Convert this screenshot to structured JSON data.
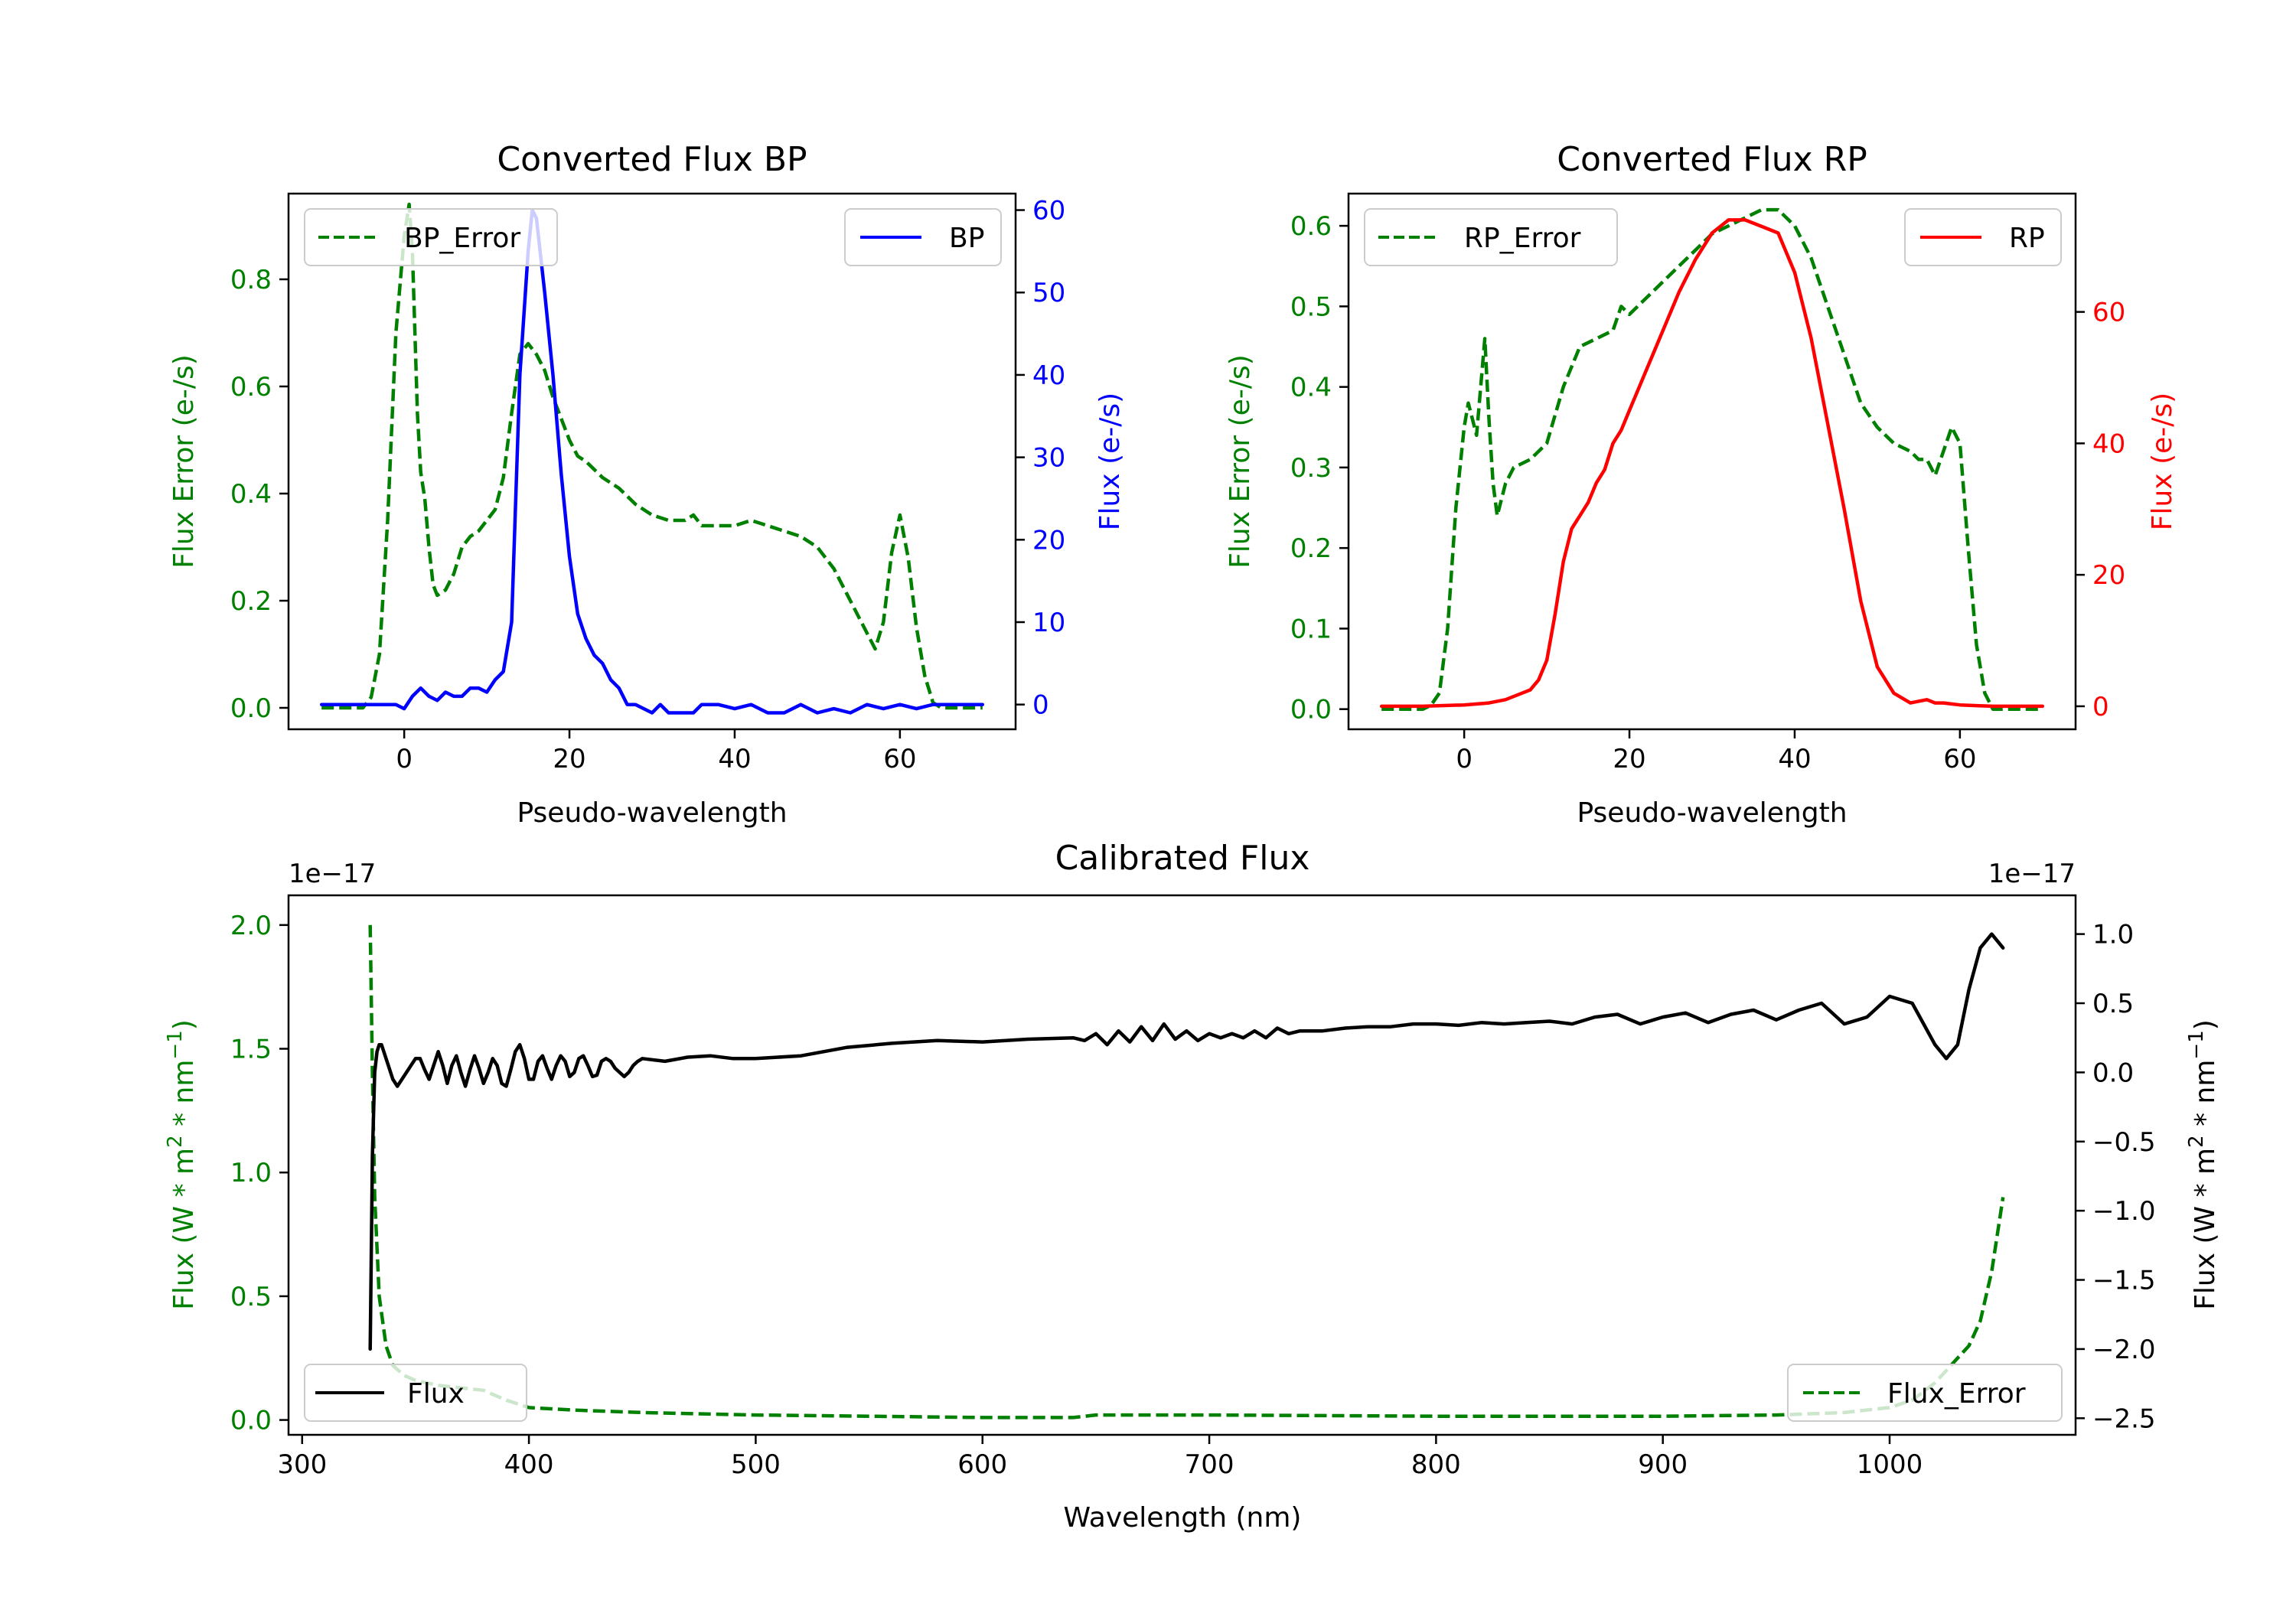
{
  "colors": {
    "green": "#008000",
    "blue": "#0000ff",
    "red": "#ff0000",
    "black": "#000000"
  },
  "chart_data": [
    {
      "type": "line",
      "title": "Converted Flux BP",
      "xlabel": "Pseudo-wavelength",
      "ylabel_left": "Flux Error (e-/s)",
      "ylabel_right": "Flux (e-/s)",
      "xlim": [
        -14,
        74
      ],
      "ylim_left": [
        -0.04,
        0.96
      ],
      "ylim_right": [
        -3,
        62
      ],
      "xticks": [
        0,
        20,
        40,
        60
      ],
      "yticks_left": [
        0.0,
        0.2,
        0.4,
        0.6,
        0.8
      ],
      "yticks_left_labels": [
        "0.0",
        "0.2",
        "0.4",
        "0.6",
        "0.8"
      ],
      "yticks_right": [
        0,
        10,
        20,
        30,
        40,
        50,
        60
      ],
      "legend_left": "BP_Error",
      "legend_right": "BP",
      "series": [
        {
          "name": "BP_Error",
          "axis": "left",
          "color": "#008000",
          "dash": true,
          "x": [
            -10,
            -5,
            -4,
            -3,
            -2,
            -1,
            0,
            0.6,
            1,
            1.6,
            2,
            2.5,
            3,
            3.5,
            4,
            5,
            6,
            7,
            8,
            9,
            10,
            11,
            12,
            13,
            14,
            15,
            16,
            17,
            18,
            19,
            20,
            21,
            22,
            24,
            26,
            28,
            30,
            32,
            34,
            35,
            36,
            38,
            40,
            42,
            44,
            46,
            48,
            50,
            52,
            54,
            56,
            57,
            58,
            59,
            60,
            61,
            62,
            63,
            64,
            65,
            70
          ],
          "y": [
            0,
            0,
            0.02,
            0.1,
            0.35,
            0.7,
            0.88,
            0.94,
            0.85,
            0.55,
            0.44,
            0.39,
            0.3,
            0.23,
            0.21,
            0.22,
            0.25,
            0.3,
            0.32,
            0.33,
            0.35,
            0.37,
            0.43,
            0.55,
            0.66,
            0.68,
            0.66,
            0.63,
            0.58,
            0.54,
            0.5,
            0.47,
            0.46,
            0.43,
            0.41,
            0.38,
            0.36,
            0.35,
            0.35,
            0.36,
            0.34,
            0.34,
            0.34,
            0.35,
            0.34,
            0.33,
            0.32,
            0.3,
            0.26,
            0.2,
            0.14,
            0.11,
            0.16,
            0.29,
            0.36,
            0.28,
            0.15,
            0.06,
            0.01,
            0,
            0
          ]
        },
        {
          "name": "BP",
          "axis": "right",
          "color": "#0000ff",
          "dash": false,
          "x": [
            -10,
            -5,
            -3,
            -1,
            0,
            1,
            2,
            3,
            4,
            5,
            6,
            7,
            8,
            9,
            10,
            11,
            12,
            13,
            14,
            15,
            15.5,
            16,
            17,
            18,
            19,
            20,
            21,
            22,
            23,
            24,
            25,
            26,
            27,
            28,
            29,
            30,
            31,
            32,
            33,
            34,
            35,
            36,
            38,
            40,
            42,
            44,
            46,
            48,
            50,
            52,
            54,
            56,
            58,
            60,
            62,
            64,
            66,
            70
          ],
          "y": [
            0,
            0,
            0,
            0,
            -0.5,
            1,
            2,
            1,
            0.5,
            1.5,
            1,
            1,
            2,
            2,
            1.5,
            3,
            4,
            10,
            40,
            55,
            60,
            59,
            50,
            40,
            28,
            18,
            11,
            8,
            6,
            5,
            3,
            2,
            0,
            0,
            -0.5,
            -1,
            0,
            -1,
            -1,
            -1,
            -1,
            0,
            0,
            -0.5,
            0,
            -1,
            -1,
            0,
            -1,
            -0.5,
            -1,
            0,
            -0.5,
            0,
            -0.5,
            0,
            0,
            0
          ]
        }
      ]
    },
    {
      "type": "line",
      "title": "Converted Flux RP",
      "xlabel": "Pseudo-wavelength",
      "ylabel_left": "Flux Error (e-/s)",
      "ylabel_right": "Flux (e-/s)",
      "xlim": [
        -14,
        74
      ],
      "ylim_left": [
        -0.025,
        0.64
      ],
      "ylim_right": [
        -3.5,
        78
      ],
      "xticks": [
        0,
        20,
        40,
        60
      ],
      "yticks_left": [
        0.0,
        0.1,
        0.2,
        0.3,
        0.4,
        0.5,
        0.6
      ],
      "yticks_left_labels": [
        "0.0",
        "0.1",
        "0.2",
        "0.3",
        "0.4",
        "0.5",
        "0.6"
      ],
      "yticks_right": [
        0,
        20,
        40,
        60
      ],
      "legend_left": "RP_Error",
      "legend_right": "RP",
      "series": [
        {
          "name": "RP_Error",
          "axis": "left",
          "color": "#008000",
          "dash": true,
          "x": [
            -10,
            -5,
            -4,
            -3,
            -2,
            -1,
            0,
            0.5,
            1,
            1.5,
            2,
            2.5,
            3,
            3.5,
            4,
            5,
            6,
            8,
            10,
            12,
            14,
            16,
            18,
            19,
            20,
            22,
            24,
            26,
            28,
            30,
            32,
            34,
            36,
            38,
            40,
            42,
            44,
            46,
            48,
            50,
            52,
            54,
            55,
            56,
            57,
            58,
            59,
            60,
            61,
            62,
            63,
            64,
            65,
            70
          ],
          "y": [
            0,
            0,
            0.005,
            0.02,
            0.1,
            0.25,
            0.35,
            0.38,
            0.36,
            0.34,
            0.4,
            0.46,
            0.36,
            0.28,
            0.24,
            0.28,
            0.3,
            0.31,
            0.33,
            0.4,
            0.45,
            0.46,
            0.47,
            0.5,
            0.49,
            0.51,
            0.53,
            0.55,
            0.57,
            0.59,
            0.6,
            0.61,
            0.62,
            0.62,
            0.6,
            0.56,
            0.5,
            0.44,
            0.38,
            0.35,
            0.33,
            0.32,
            0.31,
            0.31,
            0.29,
            0.32,
            0.35,
            0.33,
            0.2,
            0.08,
            0.02,
            0,
            0,
            0
          ]
        },
        {
          "name": "RP",
          "axis": "right",
          "color": "#ff0000",
          "dash": false,
          "x": [
            -10,
            -5,
            0,
            3,
            5,
            7,
            8,
            9,
            10,
            11,
            12,
            13,
            14,
            15,
            16,
            17,
            18,
            19,
            20,
            22,
            24,
            26,
            28,
            30,
            32,
            34,
            36,
            38,
            40,
            42,
            44,
            46,
            48,
            50,
            52,
            54,
            56,
            57,
            58,
            60,
            62,
            64,
            66,
            70
          ],
          "y": [
            0,
            0,
            0.2,
            0.5,
            1,
            2,
            2.5,
            4,
            7,
            14,
            22,
            27,
            29,
            31,
            34,
            36,
            40,
            42,
            45,
            51,
            57,
            63,
            68,
            72,
            74,
            74,
            73,
            72,
            66,
            56,
            43,
            30,
            16,
            6,
            2,
            0.5,
            1,
            0.5,
            0.5,
            0.2,
            0.1,
            0,
            0,
            0
          ]
        }
      ]
    },
    {
      "type": "line",
      "title": "Calibrated Flux",
      "xlabel": "Wavelength (nm)",
      "ylabel_left": "Flux (W * m",
      "ylabel_right": "Flux (W * m",
      "ylabel_units_sup": "2",
      "ylabel_mid": " * nm",
      "ylabel_units_sup2": "−1",
      "ylabel_close": ")",
      "offset_left": "1e−17",
      "offset_right": "1e−17",
      "xlim": [
        294,
        1082
      ],
      "ylim_left": [
        -0.06,
        2.12
      ],
      "ylim_right": [
        -2.62,
        1.28
      ],
      "xticks": [
        300,
        400,
        500,
        600,
        700,
        800,
        900,
        1000
      ],
      "yticks_left": [
        0.0,
        0.5,
        1.0,
        1.5,
        2.0
      ],
      "yticks_left_labels": [
        "0.0",
        "0.5",
        "1.0",
        "1.5",
        "2.0"
      ],
      "yticks_right": [
        1.0,
        0.5,
        0.0,
        -0.5,
        -1.0,
        -1.5,
        -2.0,
        -2.5
      ],
      "yticks_right_labels": [
        "1.0",
        "0.5",
        "0.0",
        "−0.5",
        "−1.0",
        "−1.5",
        "−2.0",
        "−2.5"
      ],
      "legend_left": "Flux",
      "legend_right": "Flux_Error",
      "series": [
        {
          "name": "Flux_Error",
          "axis": "left",
          "color": "#008000",
          "dash": true,
          "x": [
            330,
            331,
            332,
            334,
            337,
            340,
            345,
            350,
            360,
            370,
            380,
            390,
            400,
            420,
            450,
            500,
            550,
            600,
            640,
            650,
            700,
            800,
            900,
            950,
            980,
            1000,
            1010,
            1020,
            1030,
            1035,
            1040,
            1045,
            1050
          ],
          "y": [
            2.0,
            1.4,
            0.9,
            0.5,
            0.3,
            0.22,
            0.18,
            0.16,
            0.14,
            0.13,
            0.12,
            0.08,
            0.05,
            0.04,
            0.03,
            0.02,
            0.015,
            0.01,
            0.01,
            0.02,
            0.02,
            0.015,
            0.015,
            0.02,
            0.03,
            0.05,
            0.08,
            0.15,
            0.25,
            0.3,
            0.4,
            0.6,
            0.9
          ]
        },
        {
          "name": "Flux",
          "axis": "right",
          "color": "#000000",
          "dash": false,
          "x": [
            330,
            331,
            332,
            333,
            334,
            335,
            336,
            338,
            340,
            342,
            344,
            346,
            348,
            350,
            352,
            354,
            356,
            358,
            360,
            362,
            364,
            366,
            368,
            370,
            372,
            374,
            376,
            378,
            380,
            382,
            384,
            386,
            388,
            390,
            392,
            394,
            396,
            398,
            400,
            402,
            404,
            406,
            408,
            410,
            412,
            414,
            416,
            418,
            420,
            422,
            424,
            426,
            428,
            430,
            432,
            434,
            436,
            438,
            440,
            442,
            444,
            446,
            448,
            450,
            460,
            470,
            480,
            490,
            500,
            520,
            540,
            560,
            580,
            600,
            620,
            640,
            645,
            650,
            655,
            660,
            665,
            670,
            675,
            680,
            685,
            690,
            695,
            700,
            705,
            710,
            715,
            720,
            725,
            730,
            735,
            740,
            750,
            760,
            770,
            780,
            790,
            800,
            810,
            820,
            830,
            840,
            850,
            860,
            870,
            880,
            890,
            900,
            910,
            920,
            930,
            940,
            950,
            960,
            970,
            980,
            990,
            1000,
            1010,
            1020,
            1025,
            1030,
            1035,
            1040,
            1045,
            1050
          ],
          "y": [
            -2.0,
            -0.6,
            0.0,
            0.15,
            0.2,
            0.2,
            0.15,
            0.05,
            -0.05,
            -0.1,
            -0.05,
            0.0,
            0.05,
            0.1,
            0.1,
            0.02,
            -0.05,
            0.05,
            0.15,
            0.05,
            -0.08,
            0.05,
            0.12,
            0.0,
            -0.1,
            0.02,
            0.12,
            0.03,
            -0.08,
            0.0,
            0.1,
            0.05,
            -0.08,
            -0.1,
            0.02,
            0.15,
            0.2,
            0.1,
            -0.05,
            -0.05,
            0.08,
            0.12,
            0.03,
            -0.05,
            0.05,
            0.12,
            0.08,
            -0.03,
            0.0,
            0.1,
            0.12,
            0.05,
            -0.03,
            -0.02,
            0.08,
            0.1,
            0.08,
            0.03,
            0.0,
            -0.03,
            0.0,
            0.05,
            0.08,
            0.1,
            0.08,
            0.11,
            0.12,
            0.1,
            0.1,
            0.12,
            0.18,
            0.21,
            0.23,
            0.22,
            0.24,
            0.25,
            0.23,
            0.28,
            0.2,
            0.3,
            0.22,
            0.33,
            0.23,
            0.35,
            0.24,
            0.3,
            0.23,
            0.28,
            0.25,
            0.28,
            0.25,
            0.3,
            0.25,
            0.32,
            0.28,
            0.3,
            0.3,
            0.32,
            0.33,
            0.33,
            0.35,
            0.35,
            0.34,
            0.36,
            0.35,
            0.36,
            0.37,
            0.35,
            0.4,
            0.42,
            0.35,
            0.4,
            0.43,
            0.36,
            0.42,
            0.45,
            0.38,
            0.45,
            0.5,
            0.35,
            0.4,
            0.55,
            0.5,
            0.2,
            0.1,
            0.2,
            0.6,
            0.9,
            1.0,
            0.9
          ]
        }
      ]
    }
  ]
}
